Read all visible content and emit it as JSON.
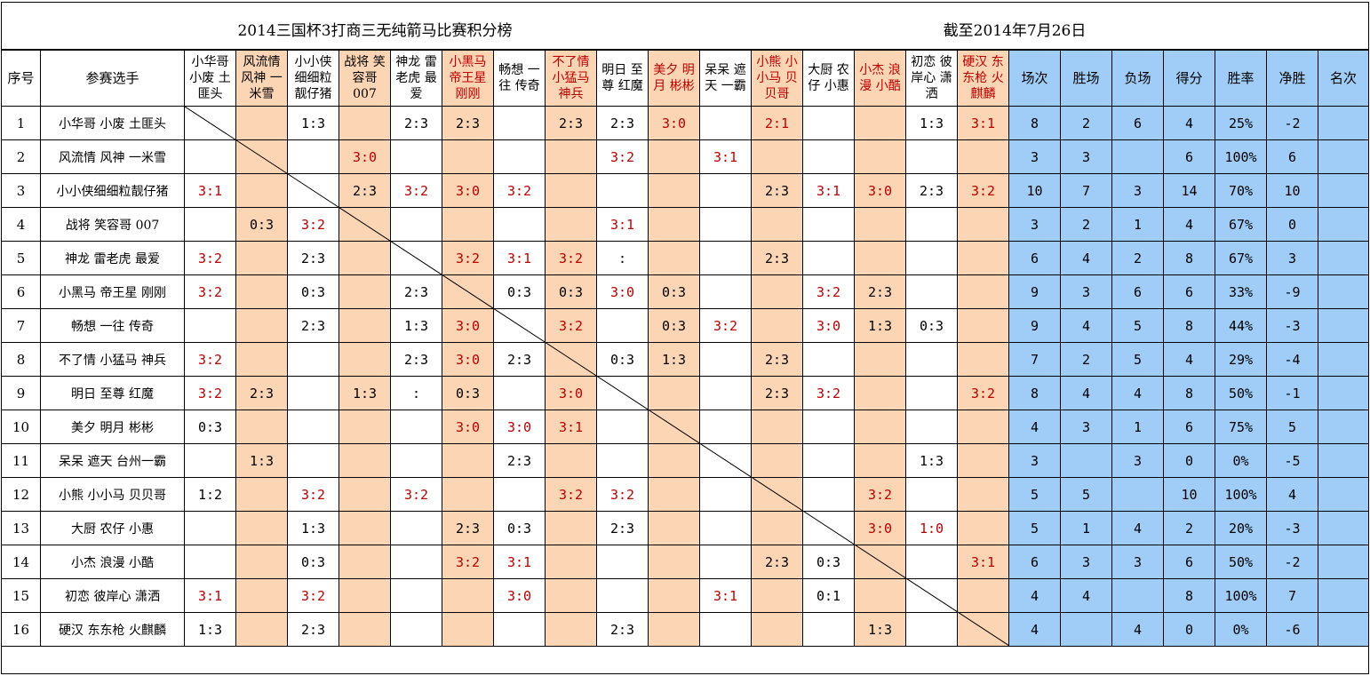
{
  "title": "2014三国杯3打商三无纯箭马比赛积分榜",
  "date": "截至2014年7月26日",
  "headers": {
    "index": "序号",
    "player": "参赛选手",
    "stats": [
      "场次",
      "胜场",
      "负场",
      "得分",
      "胜率",
      "净胜",
      "名次"
    ]
  },
  "teams": [
    {
      "short": "小华哥 小废 土匪头",
      "name": "小华哥  小废  土匪头",
      "color": "#000000"
    },
    {
      "short": "风流情 风神 一米雪",
      "name": "风流情  风神  一米雪",
      "color": "#000000"
    },
    {
      "short": "小小侠 细细粒 靓仔猪",
      "name": "小小侠细细粒靓仔猪",
      "color": "#000000"
    },
    {
      "short": "战将 笑容哥 007",
      "name": "战将  笑容哥  007",
      "color": "#000000"
    },
    {
      "short": "神龙 雷老虎 最爱",
      "name": "神龙  雷老虎  最爱",
      "color": "#000000"
    },
    {
      "short": "小黑马 帝王星 刚刚",
      "name": "小黑马  帝王星  刚刚",
      "color": "#c00000"
    },
    {
      "short": "畅想 一往 传奇",
      "name": "畅想  一往  传奇",
      "color": "#000000"
    },
    {
      "short": "不了情 小猛马 神兵",
      "name": "不了情  小猛马  神兵",
      "color": "#c00000"
    },
    {
      "short": "明日 至尊 红魔",
      "name": "明日  至尊  红魔",
      "color": "#000000"
    },
    {
      "short": "美夕 明月 彬彬",
      "name": "美夕  明月  彬彬",
      "color": "#c00000"
    },
    {
      "short": "呆呆 遮天 一霸",
      "name": "呆呆  遮天  台州一霸",
      "color": "#000000"
    },
    {
      "short": "小熊 小小马 贝贝哥",
      "name": "小熊  小小马  贝贝哥",
      "color": "#c00000"
    },
    {
      "short": "大厨 农仔 小惠",
      "name": "大厨  农仔  小惠",
      "color": "#000000"
    },
    {
      "short": "小杰 浪漫 小酷",
      "name": "小杰  浪漫  小酷",
      "color": "#c00000"
    },
    {
      "short": "初恋 彼岸心 潇洒",
      "name": "初恋  彼岸心  潇洒",
      "color": "#000000"
    },
    {
      "short": "硬汉 东东枪 火麒麟",
      "name": "硬汉  东东枪  火麒麟",
      "color": "#c00000"
    }
  ],
  "results": [
    [
      "",
      "",
      "1:3",
      "",
      "2:3",
      "2:3",
      "",
      "2:3",
      "2:3",
      "3:0",
      "",
      "2:1",
      "",
      "",
      "1:3",
      "3:1"
    ],
    [
      "",
      "",
      "",
      "3:0",
      "",
      "",
      "",
      "",
      "3:2",
      "",
      "3:1",
      "",
      "",
      "",
      "",
      ""
    ],
    [
      "3:1",
      "",
      "",
      "2:3",
      "3:2",
      "3:0",
      "3:2",
      "",
      "",
      "",
      "",
      "2:3",
      "3:1",
      "3:0",
      "2:3",
      "3:2"
    ],
    [
      "",
      "0:3",
      "3:2",
      "",
      "",
      "",
      "",
      "",
      "3:1",
      "",
      "",
      "",
      "",
      "",
      "",
      ""
    ],
    [
      "3:2",
      "",
      "2:3",
      "",
      "",
      "3:2",
      "3:1",
      "3:2",
      ":",
      "",
      "",
      "2:3",
      "",
      "",
      "",
      ""
    ],
    [
      "3:2",
      "",
      "0:3",
      "",
      "2:3",
      "",
      "0:3",
      "0:3",
      "3:0",
      "0:3",
      "",
      "",
      "3:2",
      "2:3",
      "",
      ""
    ],
    [
      "",
      "",
      "2:3",
      "",
      "1:3",
      "3:0",
      "",
      "3:2",
      "",
      "0:3",
      "3:2",
      "",
      "3:0",
      "1:3",
      "0:3",
      ""
    ],
    [
      "3:2",
      "",
      "",
      "",
      "2:3",
      "3:0",
      "2:3",
      "",
      "0:3",
      "1:3",
      "",
      "2:3",
      "",
      "",
      "",
      ""
    ],
    [
      "3:2",
      "2:3",
      "",
      "1:3",
      ":",
      "0:3",
      "",
      "3:0",
      "",
      "",
      "",
      "2:3",
      "3:2",
      "",
      "",
      "3:2"
    ],
    [
      "0:3",
      "",
      "",
      "",
      "",
      "3:0",
      "3:0",
      "3:1",
      "",
      "",
      "",
      "",
      "",
      "",
      "",
      ""
    ],
    [
      "",
      "1:3",
      "",
      "",
      "",
      "",
      "2:3",
      "",
      "",
      "",
      "",
      "",
      "",
      "",
      "1:3",
      ""
    ],
    [
      "1:2",
      "",
      "3:2",
      "",
      "3:2",
      "",
      "",
      "3:2",
      "3:2",
      "",
      "",
      "",
      "",
      "3:2",
      "",
      ""
    ],
    [
      "",
      "",
      "1:3",
      "",
      "",
      "2:3",
      "0:3",
      "",
      "2:3",
      "",
      "",
      "",
      "",
      "3:0",
      "1:0",
      ""
    ],
    [
      "",
      "",
      "0:3",
      "",
      "",
      "3:2",
      "3:1",
      "",
      "",
      "",
      "",
      "2:3",
      "0:3",
      "",
      "",
      "3:1"
    ],
    [
      "3:1",
      "",
      "3:2",
      "",
      "",
      "",
      "3:0",
      "",
      "",
      "",
      "3:1",
      "",
      "0:1",
      "",
      "",
      ""
    ],
    [
      "1:3",
      "",
      "2:3",
      "",
      "",
      "",
      "",
      "",
      "2:3",
      "",
      "",
      "",
      "",
      "1:3",
      "",
      ""
    ]
  ],
  "stats": [
    [
      "8",
      "2",
      "6",
      "4",
      "25%",
      "-2",
      ""
    ],
    [
      "3",
      "3",
      "",
      "6",
      "100%",
      "6",
      ""
    ],
    [
      "10",
      "7",
      "3",
      "14",
      "70%",
      "10",
      ""
    ],
    [
      "3",
      "2",
      "1",
      "4",
      "67%",
      "0",
      ""
    ],
    [
      "6",
      "4",
      "2",
      "8",
      "67%",
      "3",
      ""
    ],
    [
      "9",
      "3",
      "6",
      "6",
      "33%",
      "-9",
      ""
    ],
    [
      "9",
      "4",
      "5",
      "8",
      "44%",
      "-3",
      ""
    ],
    [
      "7",
      "2",
      "5",
      "4",
      "29%",
      "-4",
      ""
    ],
    [
      "8",
      "4",
      "4",
      "8",
      "50%",
      "-1",
      ""
    ],
    [
      "4",
      "3",
      "1",
      "6",
      "75%",
      "5",
      ""
    ],
    [
      "3",
      "",
      "3",
      "0",
      "0%",
      "-5",
      ""
    ],
    [
      "5",
      "5",
      "",
      "10",
      "100%",
      "4",
      ""
    ],
    [
      "5",
      "1",
      "4",
      "2",
      "20%",
      "-3",
      ""
    ],
    [
      "6",
      "3",
      "3",
      "6",
      "50%",
      "-2",
      ""
    ],
    [
      "4",
      "4",
      "",
      "8",
      "100%",
      "7",
      ""
    ],
    [
      "4",
      "",
      "4",
      "0",
      "0%",
      "-6",
      ""
    ]
  ],
  "colors": {
    "orange": "#fcd5b4",
    "blue": "#9fcdf7",
    "win": "#c00000"
  }
}
